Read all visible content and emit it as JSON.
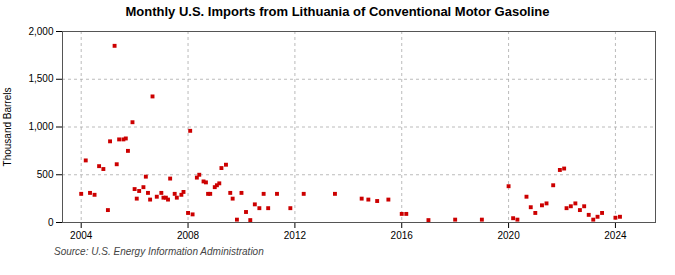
{
  "chart_data": {
    "type": "scatter",
    "title": "Monthly U.S. Imports from Lithuania of Conventional Motor Gasoline",
    "ylabel": "Thousand Barrels",
    "source": "Source: U.S. Energy Information Administration",
    "color": "#cc0000",
    "marker": "square",
    "grid": true,
    "xlim": [
      2003.3,
      2025.5
    ],
    "ylim": [
      0,
      2000
    ],
    "xticks": [
      2004,
      2008,
      2012,
      2016,
      2020,
      2024
    ],
    "yticks": [
      0,
      500,
      {
        "value": 1000,
        "label": "1,000"
      },
      {
        "value": 1500,
        "label": "1,500"
      },
      {
        "value": 2000,
        "label": "2,000"
      }
    ],
    "x": [
      2004.0,
      2004.17,
      2004.33,
      2004.5,
      2004.67,
      2004.83,
      2005.0,
      2005.08,
      2005.25,
      2005.33,
      2005.42,
      2005.58,
      2005.67,
      2005.75,
      2005.92,
      2006.0,
      2006.08,
      2006.17,
      2006.33,
      2006.42,
      2006.5,
      2006.58,
      2006.67,
      2006.83,
      2007.0,
      2007.08,
      2007.17,
      2007.25,
      2007.33,
      2007.5,
      2007.58,
      2007.75,
      2007.83,
      2008.0,
      2008.08,
      2008.17,
      2008.33,
      2008.42,
      2008.58,
      2008.67,
      2008.75,
      2008.83,
      2009.0,
      2009.08,
      2009.17,
      2009.25,
      2009.42,
      2009.58,
      2009.67,
      2009.83,
      2010.0,
      2010.17,
      2010.33,
      2010.5,
      2010.67,
      2010.83,
      2011.0,
      2011.33,
      2011.83,
      2012.33,
      2013.5,
      2014.5,
      2014.75,
      2015.08,
      2015.5,
      2016.0,
      2016.17,
      2017.0,
      2018.0,
      2019.0,
      2020.0,
      2020.17,
      2020.33,
      2020.67,
      2020.83,
      2021.0,
      2021.25,
      2021.42,
      2021.67,
      2021.92,
      2022.08,
      2022.17,
      2022.33,
      2022.5,
      2022.67,
      2022.83,
      2023.0,
      2023.17,
      2023.33,
      2023.5,
      2024.0,
      2024.17
    ],
    "values": [
      300,
      650,
      310,
      290,
      590,
      560,
      130,
      850,
      1850,
      610,
      870,
      870,
      880,
      750,
      1050,
      350,
      250,
      330,
      370,
      480,
      310,
      240,
      1320,
      270,
      310,
      260,
      260,
      240,
      460,
      300,
      260,
      290,
      320,
      100,
      960,
      85,
      470,
      500,
      430,
      420,
      300,
      300,
      370,
      390,
      410,
      570,
      605,
      310,
      250,
      30,
      310,
      110,
      25,
      190,
      150,
      300,
      150,
      300,
      150,
      300,
      300,
      250,
      240,
      225,
      240,
      90,
      90,
      25,
      30,
      30,
      380,
      45,
      30,
      270,
      160,
      100,
      180,
      200,
      390,
      550,
      565,
      150,
      170,
      200,
      130,
      170,
      80,
      30,
      60,
      100,
      50,
      60
    ]
  }
}
